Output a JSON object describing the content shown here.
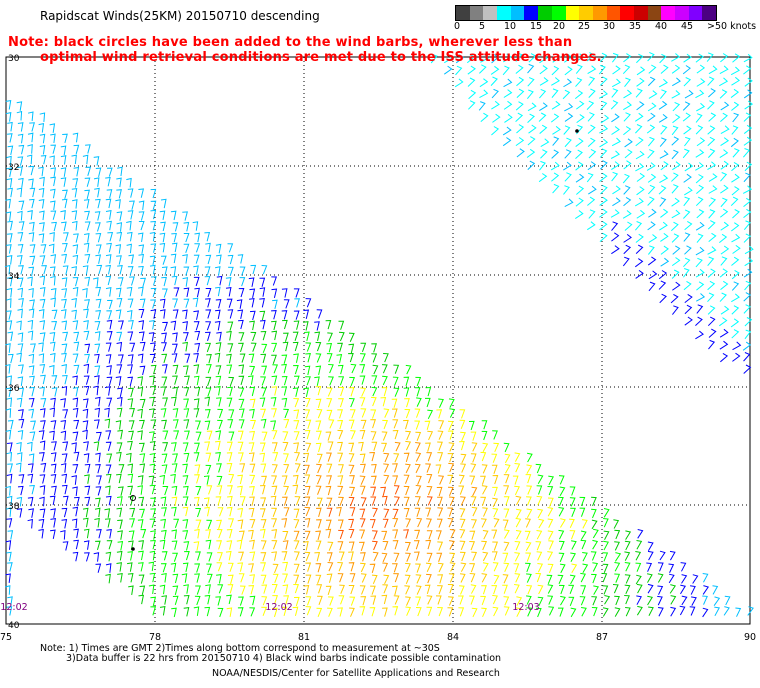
{
  "header": {
    "title": "Rapidscat Winds(25KM) 20150710 descending",
    "note_line1": "Note: black circles have been added to the wind barbs, wherever less than",
    "note_line2": "optimal wind retrieval conditions are met due to the ISS attitude changes."
  },
  "legend": {
    "labels": [
      "0",
      "5",
      "10",
      "15",
      "20",
      "25",
      "30",
      "35",
      "40",
      "45",
      ">50 knots"
    ],
    "colors": [
      "#404040",
      "#808080",
      "#c0c0c0",
      "#00ffff",
      "#00bfff",
      "#0000ff",
      "#00cc00",
      "#00ff00",
      "#ffff00",
      "#ffcc00",
      "#ff9900",
      "#ff5500",
      "#ff0000",
      "#cc0000",
      "#8b4513",
      "#ff00ff",
      "#cc00ff",
      "#8000ff",
      "#4b0082"
    ]
  },
  "axes": {
    "lat_labels": [
      "30",
      "32",
      "34",
      "36",
      "38",
      "40"
    ],
    "lon_labels": [
      "75",
      "78",
      "81",
      "84",
      "87",
      "90"
    ]
  },
  "time_labels": [
    "12:02",
    "12:02",
    "12:03"
  ],
  "footer": {
    "line1": "Note: 1) Times are GMT 2)Times along bottom correspond to measurement at ~30S",
    "line2": "3)Data buffer is 22 hrs from 20150710 4) Black wind barbs indicate possible contamination",
    "line3": "NOAA/NESDIS/Center for Satellite Applications and Research"
  }
}
